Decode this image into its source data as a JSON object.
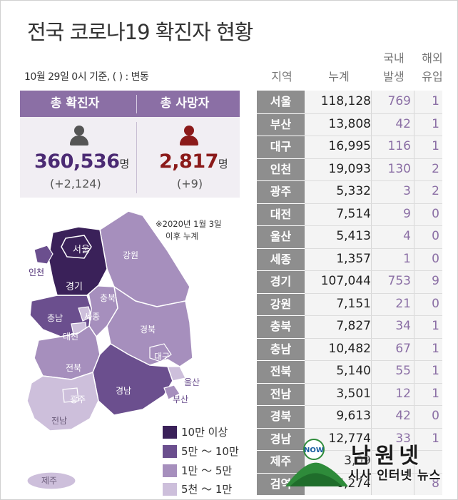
{
  "title": "전국 코로나19 확진자 현황",
  "subtitle": "10월 29일 0시 기준, ( ) : 변동",
  "summary": {
    "confirmed": {
      "label": "총 확진자",
      "value": "360,536",
      "unit": "명",
      "delta": "(+2,124)",
      "color": "#4b2a73"
    },
    "deaths": {
      "label": "총 사망자",
      "value": "2,817",
      "unit": "명",
      "delta": "(+9)",
      "color": "#8b1a1a"
    }
  },
  "map": {
    "note_line1": "※2020년 1월 3일",
    "note_line2": "이후 누계",
    "labels": {
      "seoul": "서울",
      "incheon": "인천",
      "gyeonggi": "경기",
      "gangwon": "강원",
      "chungbuk": "충북",
      "chungnam": "충남",
      "sejong": "세종",
      "daejeon": "대전",
      "gyeongbuk": "경북",
      "daegu": "대구",
      "jeonbuk": "전북",
      "ulsan": "울산",
      "gyeongnam": "경남",
      "busan": "부산",
      "gwangju": "광주",
      "jeonnam": "전남",
      "jeju": "제주"
    },
    "colors": {
      "tier1": "#3a2159",
      "tier2": "#6b4f8e",
      "tier3": "#a68fbd",
      "tier4": "#cdbfdb"
    }
  },
  "legend": [
    {
      "label": "10만 이상",
      "color": "#3a2159"
    },
    {
      "label": "5만 ～ 10만",
      "color": "#6b4f8e"
    },
    {
      "label": "1만 ～ 5만",
      "color": "#a68fbd"
    },
    {
      "label": "5천 ～ 1만",
      "color": "#cdbfdb"
    }
  ],
  "table": {
    "headers": {
      "region": "지역",
      "total": "누계",
      "domestic_1": "국내",
      "domestic_2": "발생",
      "overseas_1": "해외",
      "overseas_2": "유입"
    },
    "rows": [
      {
        "region": "서울",
        "total": "118,128",
        "domestic": "769",
        "overseas": "1"
      },
      {
        "region": "부산",
        "total": "13,808",
        "domestic": "42",
        "overseas": "1"
      },
      {
        "region": "대구",
        "total": "16,995",
        "domestic": "116",
        "overseas": "1"
      },
      {
        "region": "인천",
        "total": "19,093",
        "domestic": "130",
        "overseas": "2"
      },
      {
        "region": "광주",
        "total": "5,332",
        "domestic": "3",
        "overseas": "2"
      },
      {
        "region": "대전",
        "total": "7,514",
        "domestic": "9",
        "overseas": "0"
      },
      {
        "region": "울산",
        "total": "5,413",
        "domestic": "4",
        "overseas": "0"
      },
      {
        "region": "세종",
        "total": "1,357",
        "domestic": "1",
        "overseas": "0"
      },
      {
        "region": "경기",
        "total": "107,044",
        "domestic": "753",
        "overseas": "9"
      },
      {
        "region": "강원",
        "total": "7,151",
        "domestic": "21",
        "overseas": "0"
      },
      {
        "region": "충북",
        "total": "7,827",
        "domestic": "34",
        "overseas": "1"
      },
      {
        "region": "충남",
        "total": "10,482",
        "domestic": "67",
        "overseas": "1"
      },
      {
        "region": "전북",
        "total": "5,140",
        "domestic": "55",
        "overseas": "1"
      },
      {
        "region": "전남",
        "total": "3,501",
        "domestic": "12",
        "overseas": "1"
      },
      {
        "region": "경북",
        "total": "9,613",
        "domestic": "42",
        "overseas": "0"
      },
      {
        "region": "경남",
        "total": "12,774",
        "domestic": "33",
        "overseas": "1"
      },
      {
        "region": "제주",
        "total": "3,09",
        "domestic": "",
        "overseas": ""
      },
      {
        "region": "검역",
        "total": "6,274",
        "domestic": "",
        "overseas": "8"
      }
    ]
  },
  "watermark": {
    "main": "남원넷",
    "sub": "시사 인터넷 뉴스",
    "badge": "NOW"
  }
}
